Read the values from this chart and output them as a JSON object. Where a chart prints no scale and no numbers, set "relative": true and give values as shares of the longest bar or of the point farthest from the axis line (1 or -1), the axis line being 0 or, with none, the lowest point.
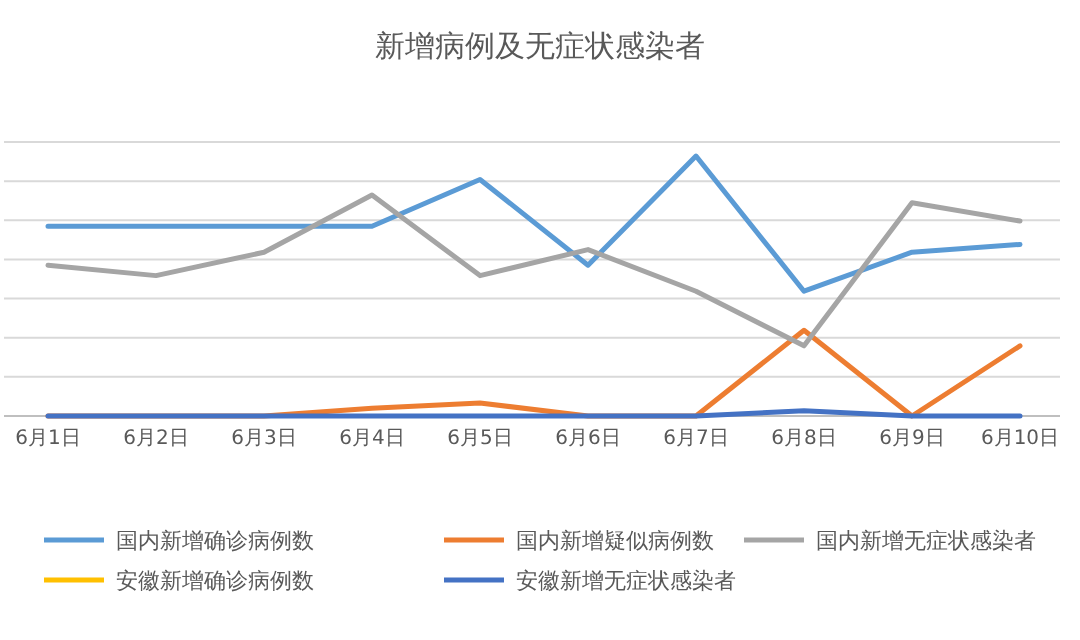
{
  "chart_data": {
    "type": "line",
    "title": "新增病例及无症状感染者",
    "categories": [
      "6月1日",
      "6月2日",
      "6月3日",
      "6月4日",
      "6月5日",
      "6月6日",
      "6月7日",
      "6月8日",
      "6月9日",
      "6月10日"
    ],
    "relative": true,
    "grid": true,
    "legend": "bottom",
    "series": [
      {
        "name": "国内新增确诊病例数",
        "color": "#5b9bd5",
        "values": [
          0.73,
          0.73,
          0.73,
          0.73,
          0.91,
          0.58,
          1,
          0.48,
          0.63,
          0.66
        ]
      },
      {
        "name": "国内新增疑似病例数",
        "color": "#ed7d31",
        "values": [
          0,
          0,
          0,
          0.03,
          0.05,
          0,
          0,
          0.33,
          0,
          0.27
        ]
      },
      {
        "name": "国内新增无症状感染者",
        "color": "#a5a5a5",
        "values": [
          0.58,
          0.54,
          0.63,
          0.85,
          0.54,
          0.64,
          0.48,
          0.27,
          0.82,
          0.75
        ]
      },
      {
        "name": "安徽新增确诊病例数",
        "color": "#ffc000",
        "values": [
          null,
          null,
          null,
          null,
          null,
          null,
          null,
          null,
          null,
          null
        ]
      },
      {
        "name": "安徽新增无症状感染者",
        "color": "#4472c4",
        "values": [
          0,
          0,
          0,
          0,
          0,
          0,
          0,
          0.02,
          0,
          0
        ]
      }
    ]
  }
}
